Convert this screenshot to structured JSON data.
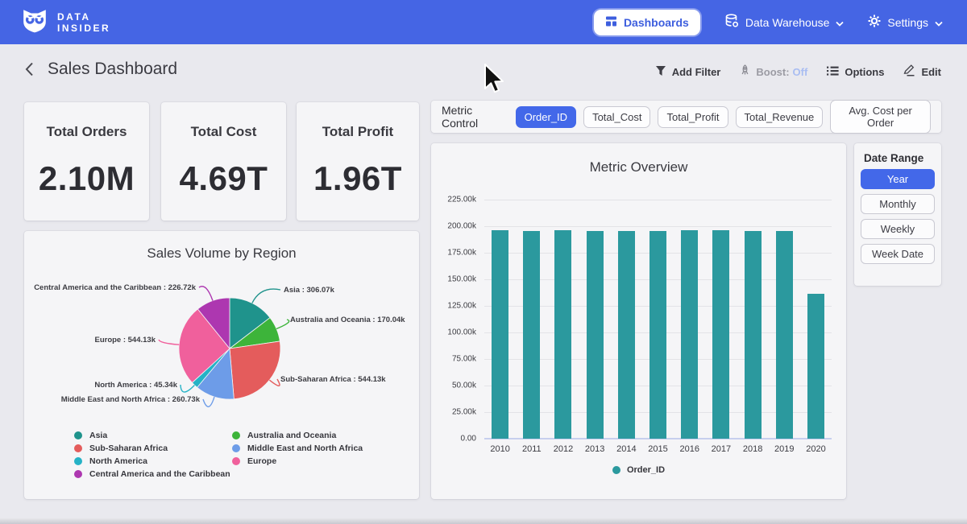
{
  "navbar": {
    "brand_line1": "DATA",
    "brand_line2": "INSIDER",
    "dashboards_label": "Dashboards",
    "data_warehouse_label": "Data Warehouse",
    "settings_label": "Settings"
  },
  "header": {
    "title": "Sales Dashboard",
    "add_filter": "Add Filter",
    "boost_label": "Boost:",
    "boost_state": "Off",
    "options": "Options",
    "edit": "Edit"
  },
  "kpis": [
    {
      "label": "Total Orders",
      "value": "2.10M"
    },
    {
      "label": "Total Cost",
      "value": "4.69T"
    },
    {
      "label": "Total Profit",
      "value": "1.96T"
    }
  ],
  "metric_control": {
    "label": "Metric Control",
    "options": [
      {
        "label": "Order_ID",
        "selected": true
      },
      {
        "label": "Total_Cost",
        "selected": false
      },
      {
        "label": "Total_Profit",
        "selected": false
      },
      {
        "label": "Total_Revenue",
        "selected": false
      },
      {
        "label": "Avg. Cost per Order",
        "selected": false
      }
    ]
  },
  "date_range": {
    "label": "Date Range",
    "options": [
      {
        "label": "Year",
        "selected": true
      },
      {
        "label": "Monthly",
        "selected": false
      },
      {
        "label": "Weekly",
        "selected": false
      },
      {
        "label": "Week Date",
        "selected": false
      }
    ]
  },
  "colors": {
    "navbar_blue": "#4565e4",
    "accent_blue": "#4368e9",
    "bar_teal": "#2b999e",
    "page_bg": "#e9e9ee",
    "card_bg": "#f5f5f7"
  },
  "chart_data": [
    {
      "type": "pie",
      "title": "Sales Volume by Region",
      "unit": "k",
      "slices": [
        {
          "label": "Asia",
          "value": 306.07,
          "display": "306.07k",
          "color": "#1f938c"
        },
        {
          "label": "Australia and Oceania",
          "value": 170.04,
          "display": "170.04k",
          "color": "#3db43a"
        },
        {
          "label": "Sub-Saharan Africa",
          "value": 544.13,
          "display": "544.13k",
          "color": "#e45c5c"
        },
        {
          "label": "Middle East and North Africa",
          "value": 260.73,
          "display": "260.73k",
          "color": "#6d9ce8"
        },
        {
          "label": "North America",
          "value": 45.34,
          "display": "45.34k",
          "color": "#25b2c6"
        },
        {
          "label": "Europe",
          "value": 544.13,
          "display": "544.13k",
          "color": "#f0609c"
        },
        {
          "label": "Central America and the Caribbean",
          "value": 226.72,
          "display": "226.72k",
          "color": "#ad37b0"
        }
      ],
      "legend_columns": [
        [
          "Asia",
          "Sub-Saharan Africa",
          "North America",
          "Central America and the Caribbean"
        ],
        [
          "Australia and Oceania",
          "Middle East and North Africa",
          "Europe"
        ]
      ],
      "legend_position": "bottom"
    },
    {
      "type": "bar",
      "title": "Metric Overview",
      "categories": [
        "2010",
        "2011",
        "2012",
        "2013",
        "2014",
        "2015",
        "2016",
        "2017",
        "2018",
        "2019",
        "2020"
      ],
      "series": [
        {
          "name": "Order_ID",
          "color": "#2b999e",
          "values": [
            195.9,
            195.6,
            196.5,
            195.6,
            195.4,
            195.5,
            196.6,
            195.9,
            195.6,
            195.8,
            136.3
          ]
        }
      ],
      "unit": "k",
      "ylim": [
        0,
        225
      ],
      "ytick_step": 25,
      "ytick_labels": [
        "0.00",
        "25.00k",
        "50.00k",
        "75.00k",
        "100.00k",
        "125.00k",
        "150.00k",
        "175.00k",
        "200.00k",
        "225.00k"
      ],
      "grid": true,
      "legend_position": "bottom"
    }
  ]
}
